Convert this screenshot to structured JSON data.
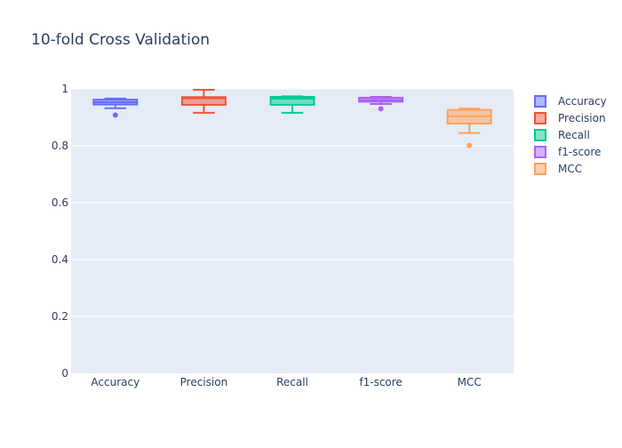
{
  "chart_data": {
    "type": "box",
    "title": "10-fold Cross Validation",
    "xlabel": "",
    "ylabel": "",
    "categories": [
      "Accuracy",
      "Precision",
      "Recall",
      "f1-score",
      "MCC"
    ],
    "ylim": [
      0,
      1
    ],
    "yticks": [
      0,
      0.2,
      0.4,
      0.6,
      0.8,
      1
    ],
    "ytick_labels": [
      "0",
      "0.2",
      "0.4",
      "0.6",
      "0.8",
      "1"
    ],
    "grid": true,
    "legend_position": "top-right",
    "series": [
      {
        "name": "Accuracy",
        "color": "#636efa",
        "min": 0.932,
        "q1": 0.945,
        "median": 0.953,
        "q3": 0.962,
        "max": 0.966,
        "outliers": [
          0.908
        ]
      },
      {
        "name": "Precision",
        "color": "#ef553b",
        "min": 0.916,
        "q1": 0.944,
        "median": 0.967,
        "q3": 0.971,
        "max": 0.997,
        "outliers": []
      },
      {
        "name": "Recall",
        "color": "#00cc96",
        "min": 0.916,
        "q1": 0.944,
        "median": 0.966,
        "q3": 0.972,
        "max": 0.974,
        "outliers": []
      },
      {
        "name": "f1-score",
        "color": "#ab63fa",
        "min": 0.947,
        "q1": 0.955,
        "median": 0.961,
        "q3": 0.969,
        "max": 0.972,
        "outliers": [
          0.93
        ]
      },
      {
        "name": "MCC",
        "color": "#ffa15a",
        "min": 0.845,
        "q1": 0.878,
        "median": 0.904,
        "q3": 0.926,
        "max": 0.931,
        "outliers": [
          0.801
        ]
      }
    ]
  }
}
